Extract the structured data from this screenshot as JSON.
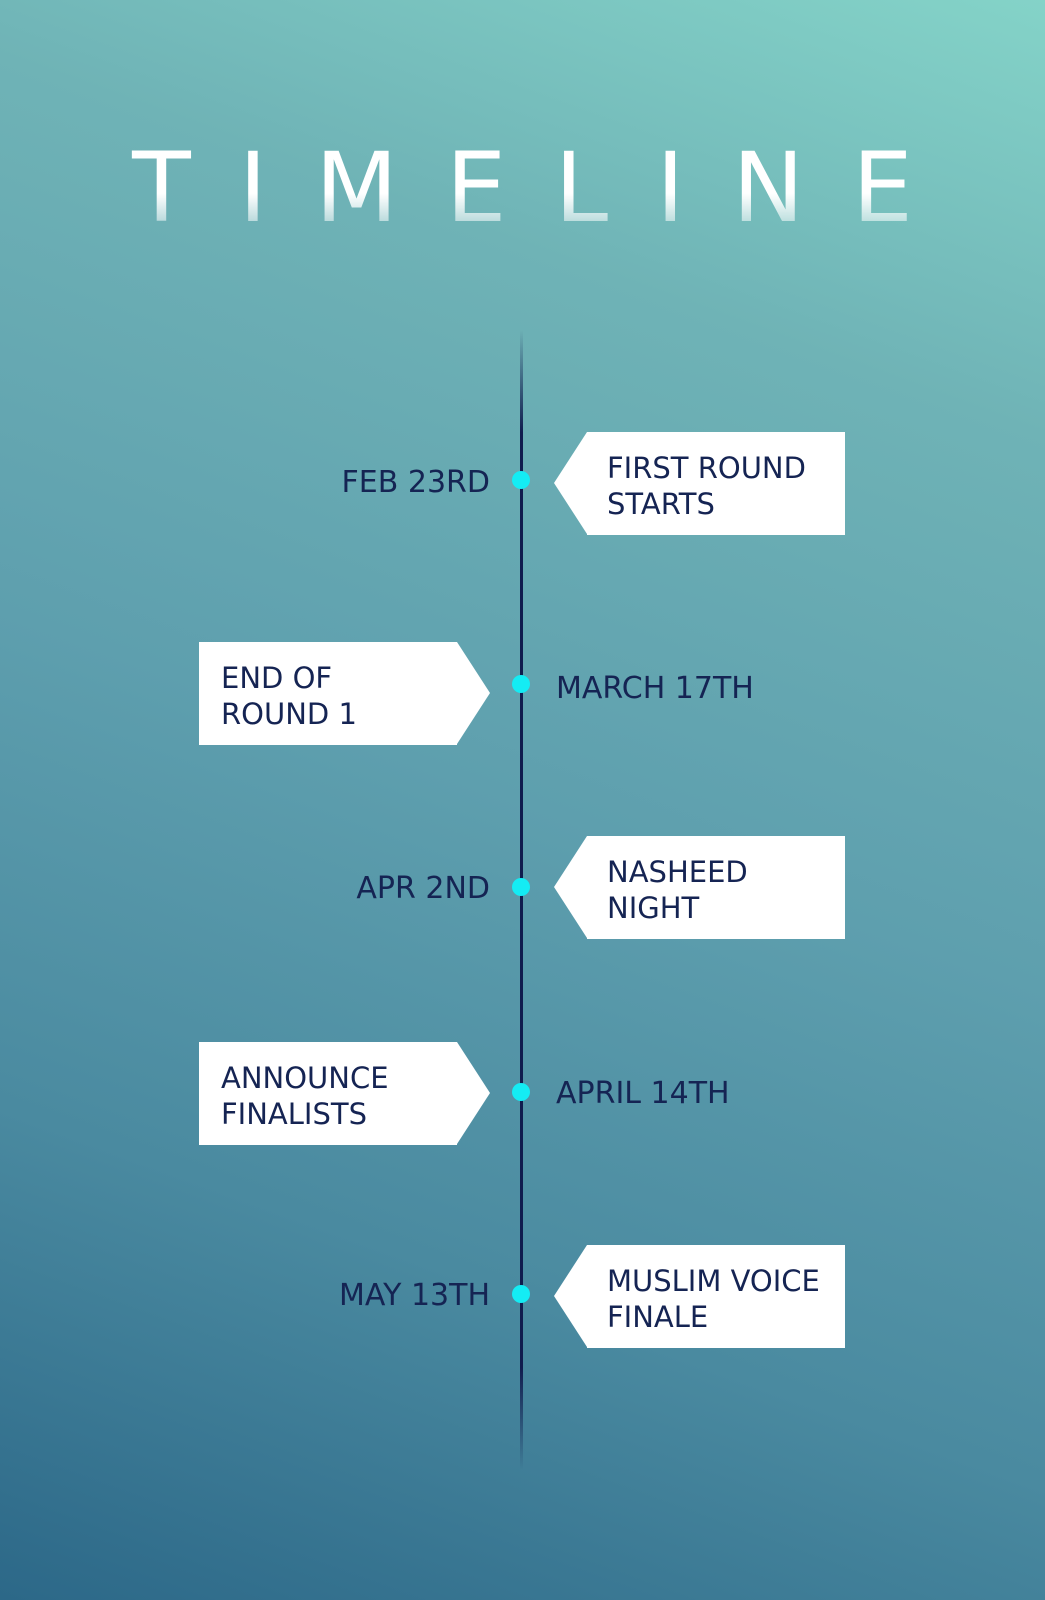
{
  "title": "TIMELINE",
  "colors": {
    "node": "#14ecf4",
    "axis": "#101c4e",
    "text": "#152453",
    "card": "#ffffff",
    "bg_top": "#84d3c8",
    "bg_bottom": "#2c6888"
  },
  "events": [
    {
      "date": "FEB 23RD",
      "label_line1": "FIRST ROUND",
      "label_line2": "STARTS"
    },
    {
      "date": "MARCH 17TH",
      "label_line1": "END OF",
      "label_line2": "ROUND 1"
    },
    {
      "date": "APR 2ND",
      "label_line1": "NASHEED",
      "label_line2": "NIGHT"
    },
    {
      "date": "APRIL 14TH",
      "label_line1": "ANNOUNCE",
      "label_line2": "FINALISTS"
    },
    {
      "date": "MAY 13TH",
      "label_line1": "MUSLIM VOICE",
      "label_line2": "FINALE"
    }
  ]
}
